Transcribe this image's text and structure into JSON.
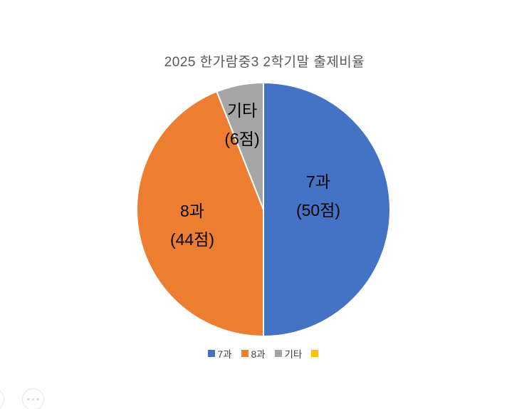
{
  "chart_data": {
    "type": "pie",
    "title": "2025 한가람중3 2학기말 출제비율",
    "categories": [
      "7과",
      "8과",
      "기타"
    ],
    "values": [
      50,
      44,
      6
    ],
    "unit": "점",
    "total": 100,
    "start_angle_deg": 0,
    "direction": "clockwise",
    "grid": false,
    "legend_position": "bottom",
    "slice_colors": [
      "#4472C4",
      "#ED7D31",
      "#A5A5A5"
    ],
    "slice_labels": [
      {
        "line1": "7과",
        "line2": "(50점)"
      },
      {
        "line1": "8과",
        "line2": "(44점)"
      },
      {
        "line1": "기타",
        "line2": "(6점)"
      }
    ],
    "legend_entries": [
      {
        "label": "7과",
        "color": "#4472C4"
      },
      {
        "label": "8과",
        "color": "#ED7D31"
      },
      {
        "label": "기타",
        "color": "#A5A5A5"
      },
      {
        "label": "",
        "color": "#FFC000"
      }
    ],
    "title_color": "#595959",
    "label_color": "#000000",
    "legend_text_color": "#404040",
    "slice_border_color": "#ffffff"
  }
}
